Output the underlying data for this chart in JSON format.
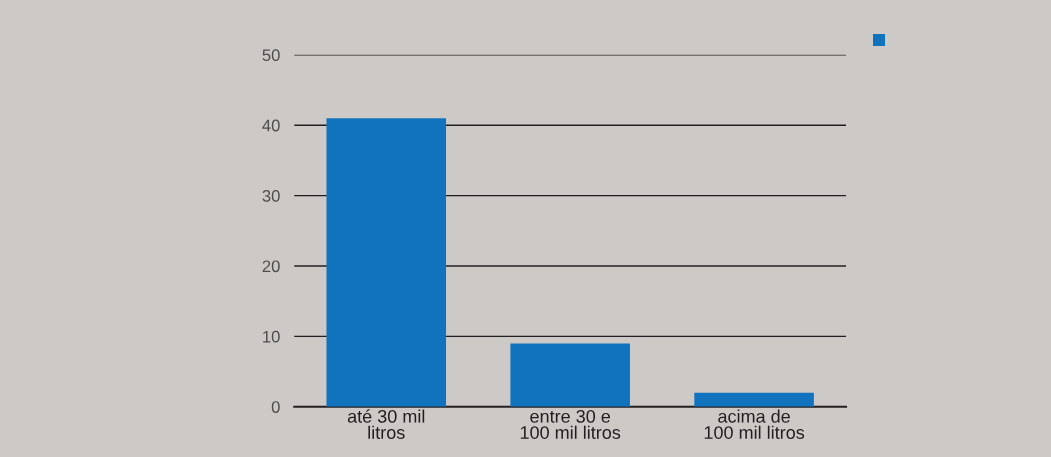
{
  "chart_data": {
    "type": "bar",
    "categories": [
      "até 30 mil\nlitros",
      "entre 30 e\n100 mil litros",
      "acima de\n100 mil litros"
    ],
    "series": [
      {
        "color": "#1173bd",
        "values": [
          41,
          9,
          2
        ]
      }
    ],
    "ylim": [
      0,
      50
    ],
    "yticks": [
      0,
      10,
      20,
      30,
      40,
      50
    ],
    "grid": "y"
  }
}
